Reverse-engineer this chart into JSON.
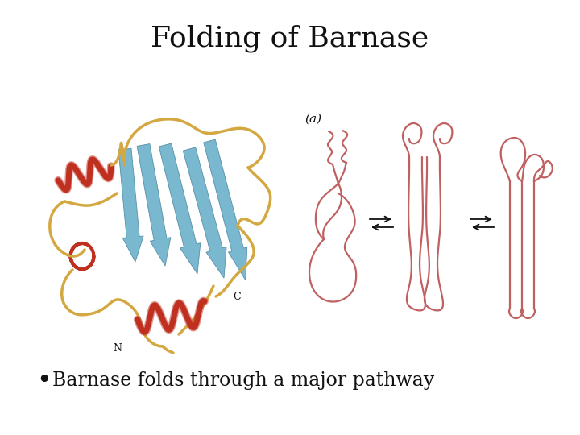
{
  "title": "Folding of Barnase",
  "title_fontsize": 26,
  "title_font": "serif",
  "bullet_text": "Barnase folds through a major pathway",
  "bullet_fontsize": 17,
  "bullet_font": "serif",
  "label_a": "(a)",
  "label_N": "N",
  "label_C": "C",
  "background_color": "#ffffff",
  "helix_red": "#c03020",
  "helix_yellow": "#d4a840",
  "sheet_blue": "#7ab8d0",
  "text_color": "#111111",
  "schematic_color": "#c06060",
  "arrow_color": "#111111"
}
